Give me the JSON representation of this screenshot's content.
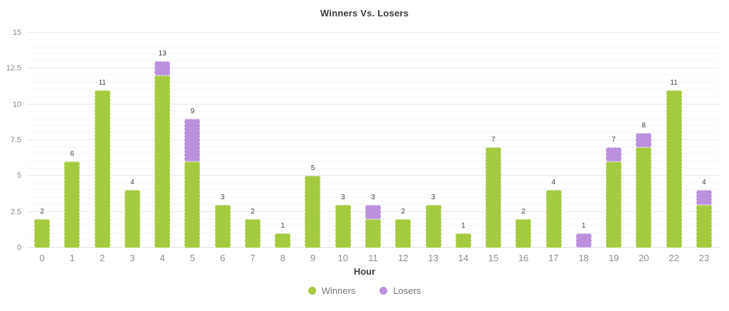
{
  "chart_data": {
    "type": "bar",
    "stacked": true,
    "title": "Winners Vs. Losers",
    "xlabel": "Hour",
    "categories": [
      "0",
      "1",
      "2",
      "3",
      "4",
      "5",
      "6",
      "7",
      "8",
      "9",
      "10",
      "11",
      "12",
      "13",
      "14",
      "15",
      "16",
      "17",
      "18",
      "19",
      "20",
      "22",
      "23"
    ],
    "series": [
      {
        "name": "Winners",
        "color": "#a4ca3f",
        "values": [
          2,
          6,
          11,
          4,
          12,
          6,
          3,
          2,
          1,
          5,
          3,
          2,
          2,
          3,
          1,
          7,
          2,
          4,
          0,
          6,
          7,
          11,
          3
        ]
      },
      {
        "name": "Losers",
        "color": "#bb90dd",
        "values": [
          0,
          0,
          0,
          0,
          1,
          3,
          0,
          0,
          0,
          0,
          0,
          1,
          0,
          0,
          0,
          0,
          0,
          0,
          1,
          1,
          1,
          0,
          1
        ]
      }
    ],
    "bar_total_labels": [
      2,
      6,
      11,
      4,
      13,
      9,
      3,
      2,
      1,
      5,
      3,
      3,
      2,
      3,
      1,
      7,
      2,
      4,
      1,
      7,
      8,
      11,
      4
    ],
    "ylim": [
      0,
      15
    ],
    "yticks": [
      0,
      2.5,
      5,
      7.5,
      10,
      12.5,
      15
    ],
    "minor_grid_step": 0.5,
    "grid": true,
    "legend_position": "bottom"
  },
  "colors": {
    "winners": "#a4ca3f",
    "losers": "#bb90dd",
    "major_grid": "#e9e9e9",
    "minor_grid": "#f6f6f6",
    "tick_text": "#8f8f8f",
    "title_text": "#3c3c3c"
  }
}
